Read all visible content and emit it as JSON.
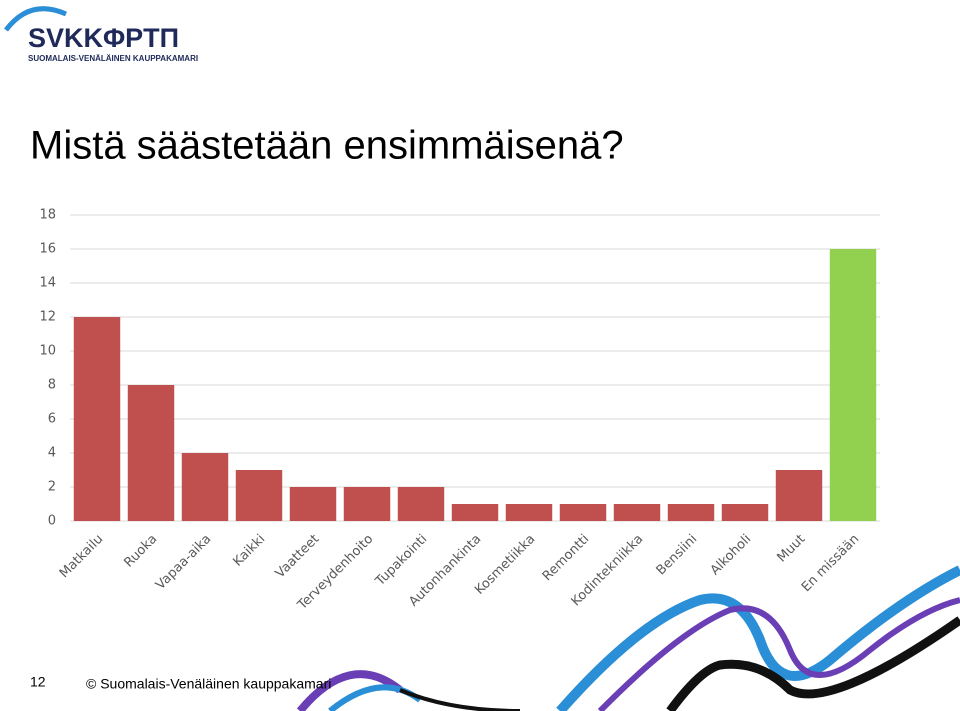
{
  "slide": {
    "logo": "SVKKΦPTП",
    "logo_subtitle": "SUOMALAIS-VENÄLÄINEN KAUPPAKAMARI",
    "page_number": "12",
    "footer": "© Suomalais-Venäläinen kauppakamari"
  },
  "chart_data": {
    "type": "bar",
    "title": "Mistä säästetään ensimmäisenä?",
    "categories": [
      "Matkailu",
      "Ruoka",
      "Vapaa-aika",
      "Kaikki",
      "Vaatteet",
      "Terveydenhoito",
      "Tupakointi",
      "Autonhankinta",
      "Kosmetiikka",
      "Remontti",
      "Kodintekniikka",
      "Bensiini",
      "Alkoholi",
      "Muut",
      "En missään"
    ],
    "values": [
      12,
      8,
      4,
      3,
      2,
      2,
      2,
      1,
      1,
      1,
      1,
      1,
      1,
      3,
      16
    ],
    "colors": [
      "#c0504d",
      "#c0504d",
      "#c0504d",
      "#c0504d",
      "#c0504d",
      "#c0504d",
      "#c0504d",
      "#c0504d",
      "#c0504d",
      "#c0504d",
      "#c0504d",
      "#c0504d",
      "#c0504d",
      "#c0504d",
      "#92d050"
    ],
    "ylim": [
      0,
      18
    ],
    "yticks": [
      0,
      2,
      4,
      6,
      8,
      10,
      12,
      14,
      16,
      18
    ],
    "grid": true
  }
}
